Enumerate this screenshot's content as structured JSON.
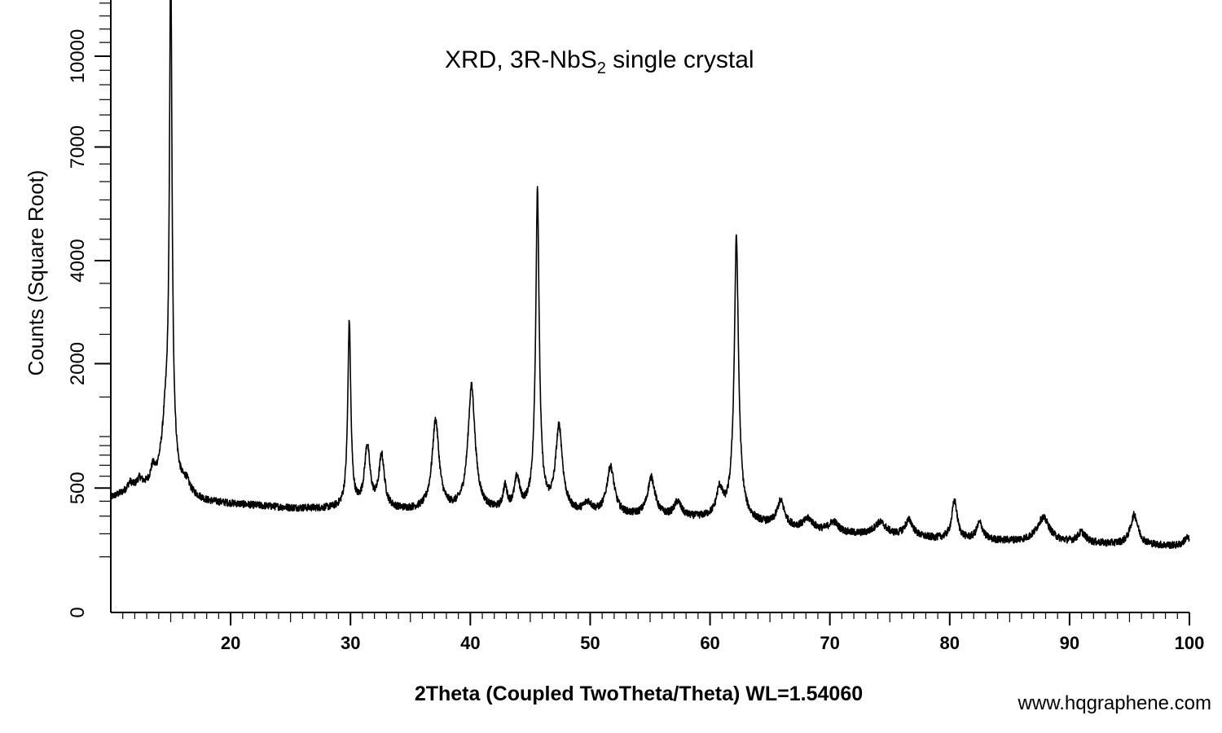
{
  "chart_data": {
    "type": "line",
    "title_main": "XRD, 3R-NbS",
    "title_sub": "2",
    "title_rest": " single crystal",
    "xlabel": "2Theta (Coupled TwoTheta/Theta) WL=1.54060",
    "ylabel": "Counts (Square Root)",
    "y_scale": "sqrt",
    "xlim": [
      10,
      100
    ],
    "ylim": [
      0,
      14000
    ],
    "x_ticks": [
      20,
      30,
      40,
      50,
      60,
      70,
      80,
      90,
      100
    ],
    "x_tick_labels": [
      "20",
      "30",
      "40",
      "50",
      "60",
      "70",
      "80",
      "90",
      "100"
    ],
    "y_ticks": [
      0,
      500,
      2000,
      4000,
      7000,
      10000
    ],
    "y_tick_labels": [
      "0",
      "500",
      "2000",
      "4000",
      "7000",
      "10000"
    ],
    "grid": false,
    "series": [
      {
        "baseline": [
          [
            10,
            420
          ],
          [
            12,
            480
          ],
          [
            14,
            500
          ],
          [
            16,
            440
          ],
          [
            18,
            390
          ],
          [
            25,
            350
          ],
          [
            30,
            340
          ],
          [
            40,
            320
          ],
          [
            50,
            300
          ],
          [
            60,
            280
          ],
          [
            65,
            240
          ],
          [
            70,
            200
          ],
          [
            80,
            170
          ],
          [
            90,
            155
          ],
          [
            100,
            140
          ]
        ],
        "peaks": [
          {
            "x": 11.6,
            "height": 60,
            "width": 0.25
          },
          {
            "x": 12.4,
            "height": 70,
            "width": 0.25
          },
          {
            "x": 13.5,
            "height": 120,
            "width": 0.2
          },
          {
            "x": 14.6,
            "height": 650,
            "width": 0.35
          },
          {
            "x": 15.0,
            "height": 14000,
            "width": 0.09
          },
          {
            "x": 16.3,
            "height": 80,
            "width": 0.3
          },
          {
            "x": 29.9,
            "height": 2400,
            "width": 0.12
          },
          {
            "x": 31.4,
            "height": 550,
            "width": 0.25
          },
          {
            "x": 32.6,
            "height": 450,
            "width": 0.25
          },
          {
            "x": 37.1,
            "height": 860,
            "width": 0.3
          },
          {
            "x": 40.1,
            "height": 1330,
            "width": 0.3
          },
          {
            "x": 42.9,
            "height": 170,
            "width": 0.2
          },
          {
            "x": 43.9,
            "height": 250,
            "width": 0.25
          },
          {
            "x": 45.6,
            "height": 5500,
            "width": 0.13
          },
          {
            "x": 47.4,
            "height": 800,
            "width": 0.3
          },
          {
            "x": 49.8,
            "height": 70,
            "width": 0.4
          },
          {
            "x": 51.7,
            "height": 380,
            "width": 0.35
          },
          {
            "x": 55.1,
            "height": 290,
            "width": 0.35
          },
          {
            "x": 57.3,
            "height": 100,
            "width": 0.35
          },
          {
            "x": 60.8,
            "height": 200,
            "width": 0.3
          },
          {
            "x": 62.2,
            "height": 4300,
            "width": 0.16
          },
          {
            "x": 65.9,
            "height": 160,
            "width": 0.35
          },
          {
            "x": 68.2,
            "height": 60,
            "width": 0.5
          },
          {
            "x": 70.3,
            "height": 60,
            "width": 0.5
          },
          {
            "x": 74.2,
            "height": 70,
            "width": 0.6
          },
          {
            "x": 76.6,
            "height": 90,
            "width": 0.4
          },
          {
            "x": 80.4,
            "height": 230,
            "width": 0.25
          },
          {
            "x": 82.5,
            "height": 90,
            "width": 0.3
          },
          {
            "x": 87.8,
            "height": 130,
            "width": 0.6
          },
          {
            "x": 91.0,
            "height": 50,
            "width": 0.4
          },
          {
            "x": 95.4,
            "height": 160,
            "width": 0.35
          },
          {
            "x": 99.8,
            "height": 40,
            "width": 0.3
          }
        ]
      }
    ]
  },
  "watermark": "www.hqgraphene.com"
}
